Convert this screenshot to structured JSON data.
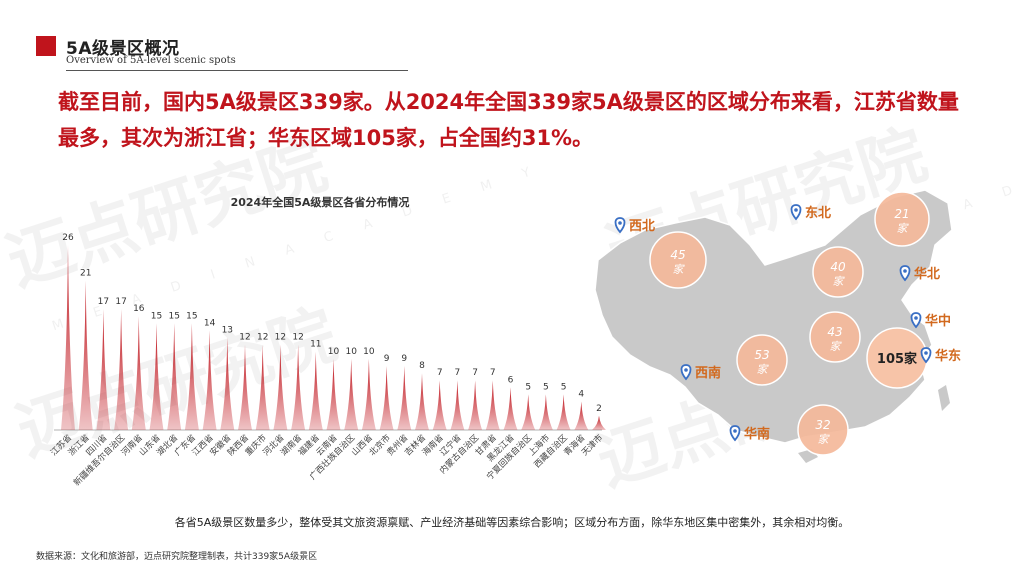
{
  "header": {
    "title": "5A级景区概况",
    "subtitle": "Overview of 5A-level scenic spots"
  },
  "headline": {
    "line1": "截至目前，国内5A级景区339家。从2024年全国339家5A级景区的区域分布来看，江苏省数量",
    "line2": "最多，其次为浙江省；华东区域105家，占全国约31%。"
  },
  "watermark": {
    "brand": "迈点研究院",
    "english": "M E A D I N  A C A D E M Y"
  },
  "chart_data": {
    "type": "bar",
    "title": "2024年全国5A级景区各省分布情况",
    "categories": [
      "江苏省",
      "浙江省",
      "四川省",
      "新疆维吾尔自治区",
      "河南省",
      "山东省",
      "湖北省",
      "广东省",
      "江西省",
      "安徽省",
      "陕西省",
      "重庆市",
      "河北省",
      "湖南省",
      "福建省",
      "云南省",
      "广西壮族自治区",
      "山西省",
      "北京市",
      "贵州省",
      "吉林省",
      "海南省",
      "辽宁省",
      "内蒙古自治区",
      "甘肃省",
      "黑龙江省",
      "宁夏回族自治区",
      "上海市",
      "西藏自治区",
      "青海省",
      "天津市"
    ],
    "values": [
      26,
      21,
      17,
      17,
      16,
      15,
      15,
      15,
      14,
      13,
      12,
      12,
      12,
      12,
      11,
      10,
      10,
      10,
      9,
      9,
      8,
      7,
      7,
      7,
      7,
      6,
      5,
      5,
      5,
      4,
      2
    ],
    "ylim": [
      0,
      26
    ],
    "bar_color": "#c0141c",
    "grid": false,
    "legend": "none"
  },
  "map": {
    "regions": [
      {
        "name": "西北",
        "value": "45",
        "unit": "家",
        "highlight": false
      },
      {
        "name": "东北",
        "value": "21",
        "unit": "家",
        "highlight": false
      },
      {
        "name": "华北",
        "value": "40",
        "unit": "家",
        "highlight": false
      },
      {
        "name": "华中",
        "value": "43",
        "unit": "家",
        "highlight": false
      },
      {
        "name": "华东",
        "value": "105",
        "unit": "家",
        "highlight": true
      },
      {
        "name": "西南",
        "value": "53",
        "unit": "家",
        "highlight": false
      },
      {
        "name": "华南",
        "value": "32",
        "unit": "家",
        "highlight": false
      }
    ],
    "label_color": "#d2691e",
    "bubble_color": "#f4b99a",
    "pin_color": "#3a6fc4"
  },
  "conclusion": "各省5A级景区数量多少，整体受其文旅资源禀赋、产业经济基础等因素综合影响；区域分布方面，除华东地区集中密集外，其余相对均衡。",
  "source": "数据来源：文化和旅游部，迈点研究院整理制表，共计339家5A级景区"
}
